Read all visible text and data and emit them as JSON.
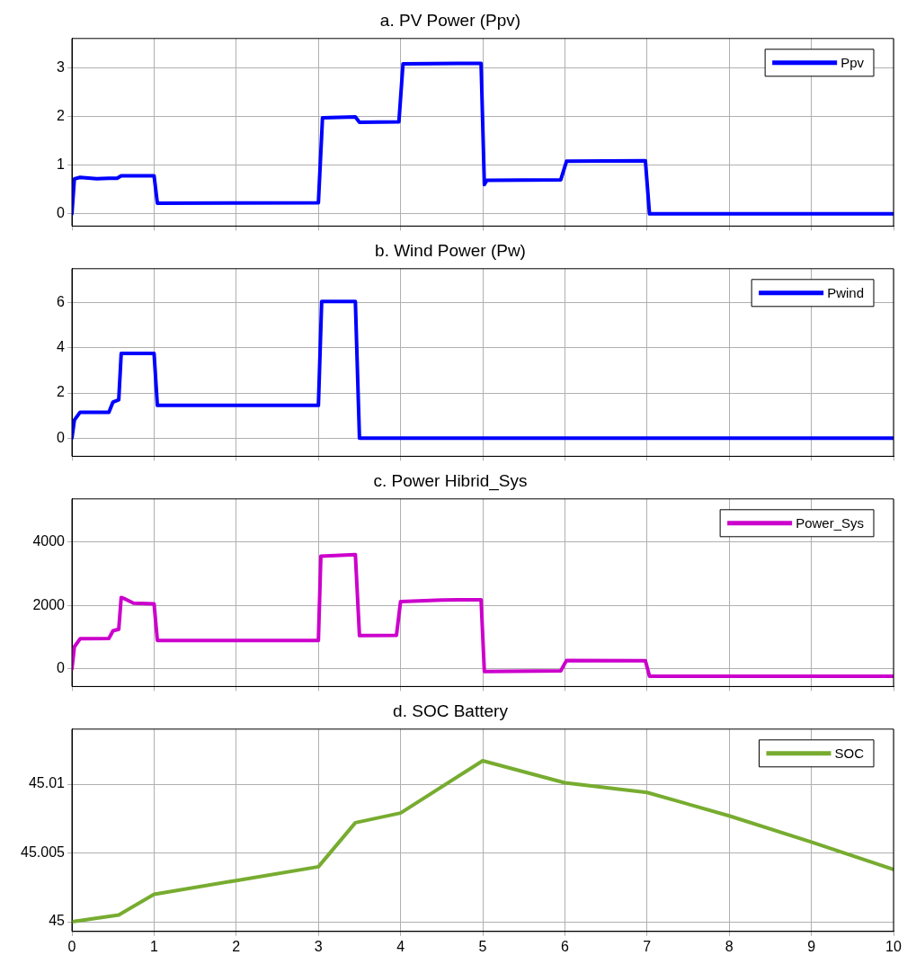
{
  "chart_data": [
    {
      "type": "line",
      "title": "a. PV Power (Ppv)",
      "xlim": [
        0,
        10
      ],
      "xticks": [
        0,
        1,
        2,
        3,
        4,
        5,
        6,
        7,
        8,
        9,
        10
      ],
      "ylim": [
        -0.25,
        3.6
      ],
      "yticks": [
        0,
        1,
        2,
        3
      ],
      "grid": true,
      "legend": "top right",
      "tick_labels": "y",
      "marker": "none",
      "line_style": "solid",
      "series": [
        {
          "name": "Ppv",
          "color": "#0000ff",
          "x": [
            0,
            0.03,
            0.1,
            0.3,
            0.45,
            0.55,
            0.6,
            1.0,
            1.04,
            3.0,
            3.05,
            3.45,
            3.5,
            3.98,
            4.03,
            4.98,
            5.02,
            5.05,
            5.95,
            6.02,
            6.98,
            7.03,
            10
          ],
          "values": [
            0,
            0.72,
            0.75,
            0.72,
            0.73,
            0.73,
            0.78,
            0.78,
            0.22,
            0.23,
            1.97,
            1.99,
            1.88,
            1.89,
            3.08,
            3.09,
            0.6,
            0.69,
            0.7,
            1.08,
            1.09,
            0,
            0
          ]
        }
      ]
    },
    {
      "type": "line",
      "title": "b. Wind Power (Pw)",
      "xlim": [
        0,
        10
      ],
      "xticks": [
        0,
        1,
        2,
        3,
        4,
        5,
        6,
        7,
        8,
        9,
        10
      ],
      "ylim": [
        -0.8,
        7.5
      ],
      "yticks": [
        0,
        2,
        4,
        6
      ],
      "grid": true,
      "legend": "top right",
      "tick_labels": "y",
      "marker": "none",
      "line_style": "solid",
      "series": [
        {
          "name": "Pwind",
          "color": "#0000ff",
          "x": [
            0,
            0.03,
            0.1,
            0.45,
            0.5,
            0.57,
            0.6,
            1.0,
            1.04,
            3.0,
            3.04,
            3.45,
            3.5,
            10
          ],
          "values": [
            0,
            0.8,
            1.15,
            1.15,
            1.6,
            1.7,
            3.75,
            3.75,
            1.45,
            1.45,
            6.05,
            6.05,
            0,
            0
          ]
        }
      ]
    },
    {
      "type": "line",
      "title": "c. Power Hibrid_Sys",
      "xlim": [
        0,
        10
      ],
      "xticks": [
        0,
        1,
        2,
        3,
        4,
        5,
        6,
        7,
        8,
        9,
        10
      ],
      "ylim": [
        -550,
        5350
      ],
      "yticks": [
        0,
        2000,
        4000
      ],
      "grid": true,
      "legend": "top right",
      "tick_labels": "y",
      "marker": "none",
      "line_style": "solid",
      "series": [
        {
          "name": "Power_Sys",
          "color": "#cc00cc",
          "x": [
            0,
            0.03,
            0.1,
            0.45,
            0.5,
            0.57,
            0.6,
            0.65,
            0.75,
            1.0,
            1.04,
            3.0,
            3.03,
            3.45,
            3.5,
            3.95,
            4.0,
            4.5,
            4.98,
            5.02,
            5.95,
            6.02,
            6.98,
            7.03,
            10
          ],
          "values": [
            0,
            700,
            950,
            960,
            1200,
            1250,
            2250,
            2200,
            2070,
            2050,
            900,
            900,
            3550,
            3600,
            1050,
            1060,
            2120,
            2170,
            2180,
            -80,
            -60,
            270,
            260,
            -230,
            -230
          ]
        }
      ]
    },
    {
      "type": "line",
      "title": "d. SOC Battery",
      "xlim": [
        0,
        10
      ],
      "xticks": [
        0,
        1,
        2,
        3,
        4,
        5,
        6,
        7,
        8,
        9,
        10
      ],
      "ylim": [
        44.9993,
        45.014
      ],
      "yticks": [
        45,
        45.005,
        45.01
      ],
      "grid": true,
      "legend": "top right",
      "marker": "none",
      "line_style": "solid",
      "series": [
        {
          "name": "SOC",
          "color": "#77ac30",
          "x": [
            0,
            0.57,
            1,
            2,
            3,
            3.45,
            4,
            5,
            6,
            7,
            8,
            9,
            10
          ],
          "values": [
            45,
            45.0005,
            45.002,
            45.003,
            45.004,
            45.0072,
            45.0079,
            45.0117,
            45.0101,
            45.0094,
            45.0077,
            45.0058,
            45.0038
          ]
        }
      ]
    }
  ]
}
